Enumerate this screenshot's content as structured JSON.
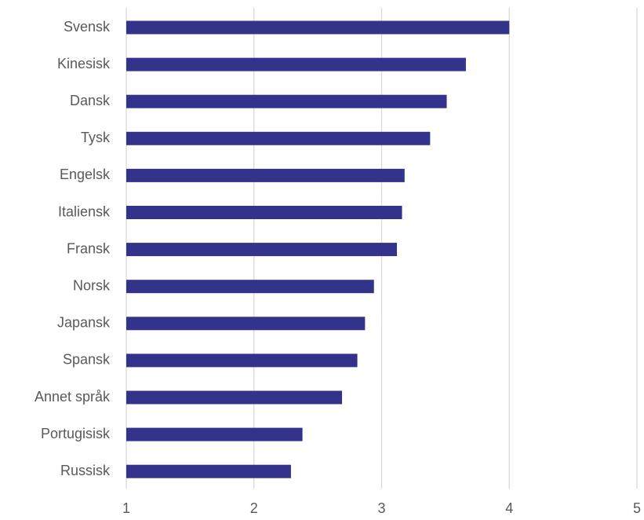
{
  "chart_data": {
    "type": "bar",
    "orientation": "horizontal",
    "title": "",
    "xlabel": "",
    "ylabel": "",
    "xlim": [
      1,
      5
    ],
    "x_ticks": [
      "1",
      "2",
      "3",
      "4",
      "5"
    ],
    "grid": true,
    "bar_color": "#34338b",
    "categories": [
      "Svensk",
      "Kinesisk",
      "Dansk",
      "Tysk",
      "Engelsk",
      "Italiensk",
      "Fransk",
      "Norsk",
      "Japansk",
      "Spansk",
      "Annet språk",
      "Portugisisk",
      "Russisk"
    ],
    "values": [
      4.0,
      3.66,
      3.51,
      3.38,
      3.18,
      3.16,
      3.12,
      2.94,
      2.87,
      2.81,
      2.69,
      2.38,
      2.29
    ]
  }
}
